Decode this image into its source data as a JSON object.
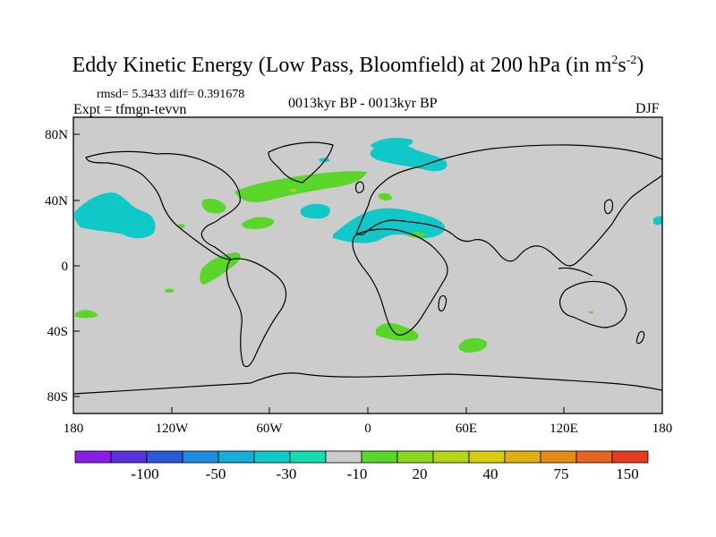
{
  "title": {
    "main": "Eddy Kinetic Energy (Low Pass, Bloomfield) at 200 hPa (in m",
    "sup1": "2",
    "mid": "s",
    "sup2": "-2",
    "end": ")"
  },
  "stats": "rmsd= 5.3433  diff= 0.391678",
  "expt": "Expt = tfmgn-tevvn",
  "period": "0013kyr BP - 0013kyr BP",
  "season": "DJF",
  "axes": {
    "x_ticks": [
      "180",
      "120W",
      "60W",
      "0",
      "60E",
      "120E",
      "180"
    ],
    "y_ticks": [
      "80N",
      "40N",
      "0",
      "40S",
      "80S"
    ]
  },
  "colorbar": {
    "labels": [
      "-100",
      "-50",
      "-30",
      "-10",
      "20",
      "40",
      "75",
      "150"
    ],
    "colors": [
      "#8a1ee6",
      "#5a32dc",
      "#2a5ad6",
      "#1e8cde",
      "#14aed8",
      "#10c8c8",
      "#14dcb0",
      "#cccccc",
      "#5ad62a",
      "#8cd81e",
      "#b4d414",
      "#d8cc10",
      "#e0b010",
      "#e68c14",
      "#e6641e",
      "#e63c1e"
    ]
  },
  "colors": {
    "land_background": "#cccccc",
    "cyan_anomaly": "#10c8c8",
    "green_anomaly": "#5ad62a"
  }
}
